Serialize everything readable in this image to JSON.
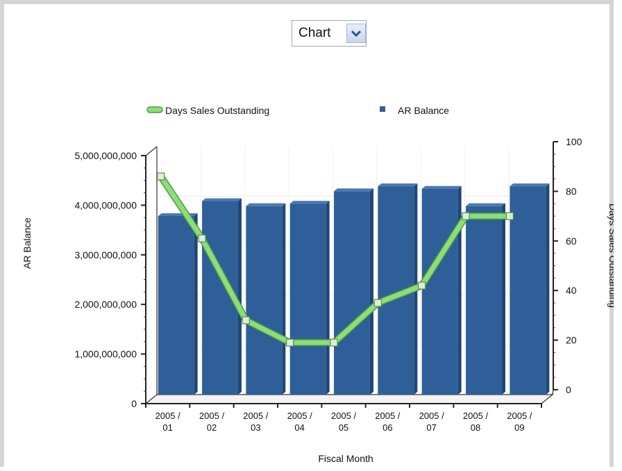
{
  "selector": {
    "value": "Chart"
  },
  "colors": {
    "bar_front": "#2f5f99",
    "bar_top": "#4a7ab4",
    "bar_side": "#1f4678",
    "line": "#8edc7a",
    "line_edge": "#4f9a45"
  },
  "chart_data": {
    "type": "bar",
    "categories": [
      "2005 / 01",
      "2005 / 02",
      "2005 / 03",
      "2005 / 04",
      "2005 / 05",
      "2005 / 06",
      "2005 / 07",
      "2005 / 08",
      "2005 / 09"
    ],
    "series": [
      {
        "name": "AR Balance",
        "type": "bar",
        "axis": "left",
        "values": [
          3600000000,
          3900000000,
          3800000000,
          3850000000,
          4100000000,
          4200000000,
          4150000000,
          3800000000,
          4200000000
        ]
      },
      {
        "name": "Days Sales Outstanding",
        "type": "line",
        "axis": "right",
        "values": [
          86,
          61,
          28,
          19,
          19,
          35,
          42,
          70,
          70
        ]
      }
    ],
    "legend": [
      "Days Sales Outstanding",
      "AR Balance"
    ],
    "legend_position": "top",
    "xlabel": "Fiscal Month",
    "ylabel": "AR Balance",
    "y2label": "Days Sales Outstanding",
    "ylim": [
      0,
      5000000000
    ],
    "y2lim": [
      0,
      100
    ],
    "yticks": [
      "0",
      "1,000,000,000",
      "2,000,000,000",
      "3,000,000,000",
      "4,000,000,000",
      "5,000,000,000"
    ],
    "y2ticks": [
      "0",
      "20",
      "40",
      "60",
      "80",
      "100"
    ],
    "xtick_labels": [
      [
        "2005 /",
        "01"
      ],
      [
        "2005 /",
        "02"
      ],
      [
        "2005 /",
        "03"
      ],
      [
        "2005 /",
        "04"
      ],
      [
        "2005 /",
        "05"
      ],
      [
        "2005 /",
        "06"
      ],
      [
        "2005 /",
        "07"
      ],
      [
        "2005 /",
        "08"
      ],
      [
        "2005 /",
        "09"
      ]
    ],
    "grid": true,
    "style": "3d"
  }
}
